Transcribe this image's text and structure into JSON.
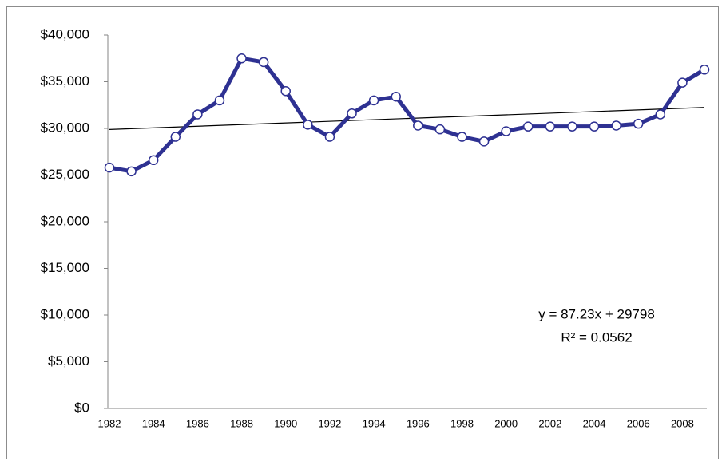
{
  "chart_data": {
    "type": "line",
    "categories": [
      "1982",
      null,
      "1984",
      null,
      "1986",
      null,
      "1988",
      null,
      "1990",
      null,
      "1992",
      null,
      "1994",
      null,
      "1996",
      null,
      "1998",
      null,
      "2000",
      null,
      "2002",
      null,
      "2004",
      null,
      "2006",
      null,
      "2008",
      null
    ],
    "series": [
      {
        "color": "#2e3192",
        "values": [
          25800,
          25400,
          26600,
          29100,
          31500,
          33000,
          37500,
          37100,
          34000,
          30400,
          29100,
          31600,
          33000,
          33400,
          30300,
          29900,
          29100,
          28600,
          29700,
          30200,
          30200,
          30200,
          30200,
          30300,
          30500,
          31500,
          34900,
          36300
        ]
      }
    ],
    "ylim": [
      0,
      40000
    ],
    "yticks": [
      {
        "value": 0,
        "label": "$0"
      },
      {
        "value": 5000,
        "label": "$5,000"
      },
      {
        "value": 10000,
        "label": "$10,000"
      },
      {
        "value": 15000,
        "label": "$15,000"
      },
      {
        "value": 20000,
        "label": "$20,000"
      },
      {
        "value": 25000,
        "label": "$25,000"
      },
      {
        "value": 30000,
        "label": "$30,000"
      },
      {
        "value": 35000,
        "label": "$35,000"
      },
      {
        "value": 40000,
        "label": "$40,000"
      }
    ],
    "trendline": {
      "slope": 87.23,
      "intercept": 29798,
      "color": "#000000",
      "equation": "y = 87.23x + 29798",
      "r_squared": "R² = 0.0562"
    }
  }
}
